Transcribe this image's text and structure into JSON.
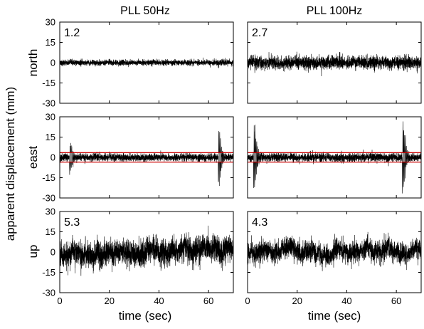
{
  "chart_data": {
    "type": "line",
    "ylabel": "apparent displacement (mm)",
    "xlabel": "time (sec)",
    "columns": [
      "PLL 50Hz",
      "PLL 100Hz"
    ],
    "rows": [
      "north",
      "east",
      "up"
    ],
    "xlim": [
      0,
      70
    ],
    "xticks": [
      0,
      20,
      40,
      60
    ],
    "ylim": [
      -30,
      30
    ],
    "yticks": [
      -30,
      -15,
      0,
      15,
      30
    ],
    "grid": false,
    "colors": {
      "trace": "#000000",
      "envelope": "#cc0000",
      "spike": "#9a9a9a"
    },
    "panels": [
      {
        "row": "north",
        "column": "PLL 50Hz",
        "rms_label": "1.2",
        "noise_mm": 1.2,
        "envelope_mm": null,
        "spikes": []
      },
      {
        "row": "north",
        "column": "PLL 100Hz",
        "rms_label": "2.7",
        "noise_mm": 2.7,
        "envelope_mm": null,
        "spikes": []
      },
      {
        "row": "east",
        "column": "PLL 50Hz",
        "rms_label": "",
        "noise_mm": 1.6,
        "envelope_mm": 3.5,
        "spikes": [
          {
            "t": 4.5,
            "amp_mm": 11
          },
          {
            "t": 64.5,
            "amp_mm": 21
          }
        ]
      },
      {
        "row": "east",
        "column": "PLL 100Hz",
        "rms_label": "",
        "noise_mm": 1.8,
        "envelope_mm": 3.5,
        "spikes": [
          {
            "t": 3,
            "amp_mm": 26
          },
          {
            "t": 63,
            "amp_mm": 28
          }
        ]
      },
      {
        "row": "up",
        "column": "PLL 50Hz",
        "rms_label": "5.3",
        "noise_mm": 5.3,
        "envelope_mm": null,
        "spikes": []
      },
      {
        "row": "up",
        "column": "PLL 100Hz",
        "rms_label": "4.3",
        "noise_mm": 4.3,
        "envelope_mm": null,
        "spikes": []
      }
    ]
  }
}
